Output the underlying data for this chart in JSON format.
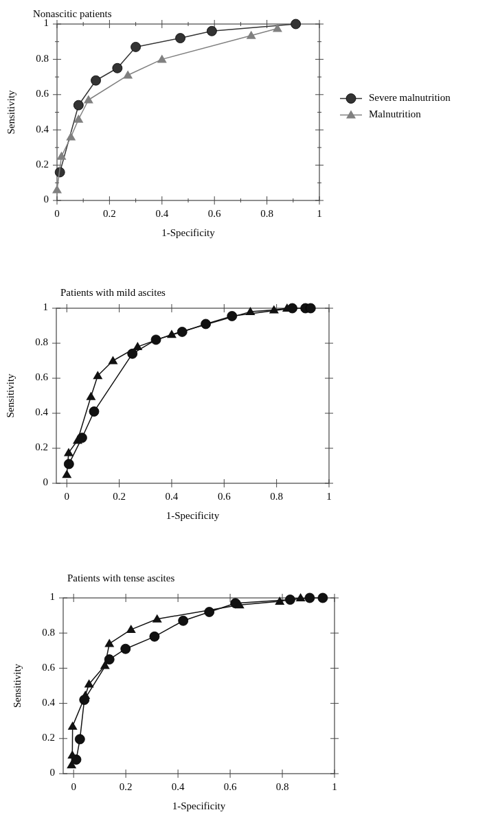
{
  "chart_data": [
    {
      "type": "line",
      "title": "Nonascitic patients",
      "xlabel": "1-Specificity",
      "ylabel": "Sensitivity",
      "xlim": [
        0,
        1
      ],
      "ylim": [
        0,
        1
      ],
      "xticks": [
        0,
        {
          "value": 0.1,
          "label": null
        },
        0.2,
        {
          "value": 0.3,
          "label": null
        },
        0.4,
        {
          "value": 0.5,
          "label": null
        },
        0.6,
        {
          "value": 0.7,
          "label": null
        },
        0.8,
        {
          "value": 0.9,
          "label": null
        },
        1
      ],
      "yticks": [
        0,
        {
          "value": 0.1,
          "label": null
        },
        0.2,
        {
          "value": 0.3,
          "label": null
        },
        0.4,
        {
          "value": 0.5,
          "label": null
        },
        0.6,
        {
          "value": 0.7,
          "label": null
        },
        0.8,
        {
          "value": 0.9,
          "label": null
        },
        1
      ],
      "legend": "right",
      "line_style": "solid",
      "series": [
        {
          "name": "Severe malnutrition",
          "color": "#333333",
          "marker": "circle",
          "x": [
            0.011,
            0.082,
            0.148,
            0.23,
            0.3,
            0.47,
            0.59,
            0.91
          ],
          "values": [
            0.16,
            0.54,
            0.68,
            0.75,
            0.87,
            0.92,
            0.96,
            1.0
          ]
        },
        {
          "name": "Malnutrition",
          "color": "#808080",
          "marker": "triangle",
          "x": [
            0,
            0.017,
            0.053,
            0.082,
            0.12,
            0.27,
            0.4,
            0.74,
            0.84
          ],
          "values": [
            0.06,
            0.25,
            0.36,
            0.46,
            0.57,
            0.71,
            0.8,
            0.935,
            0.975
          ]
        }
      ]
    },
    {
      "type": "line",
      "title": "Patients with mild ascites",
      "xlabel": "1-Specificity",
      "ylabel": "Sensitivity",
      "xlim": [
        -0.04,
        1
      ],
      "ylim": [
        0,
        1
      ],
      "xticks": [
        0,
        0.2,
        0.4,
        0.6,
        0.8,
        1
      ],
      "yticks": [
        0,
        0.2,
        0.4,
        0.6,
        0.8,
        1
      ],
      "line_style": "solid",
      "series": [
        {
          "color": "#111111",
          "marker": "circle",
          "x": [
            0.008,
            0.058,
            0.104,
            0.25,
            0.34,
            0.44,
            0.53,
            0.63,
            0.86,
            0.91,
            0.93
          ],
          "values": [
            0.11,
            0.26,
            0.41,
            0.74,
            0.82,
            0.865,
            0.91,
            0.955,
            1.0,
            1.0,
            1.0
          ]
        },
        {
          "color": "#111111",
          "marker": "triangle",
          "x": [
            0,
            0.007,
            0.041,
            0.092,
            0.118,
            0.176,
            0.27,
            0.4,
            0.7,
            0.79,
            0.84
          ],
          "values": [
            0.05,
            0.175,
            0.245,
            0.495,
            0.615,
            0.7,
            0.78,
            0.85,
            0.98,
            0.99,
            1.0
          ]
        }
      ]
    },
    {
      "type": "line",
      "title": "Patients with tense ascites",
      "xlabel": "1-Specificity",
      "ylabel": "Sensitivity",
      "xlim": [
        -0.04,
        1
      ],
      "ylim": [
        0,
        1
      ],
      "xticks": [
        0,
        0.2,
        0.4,
        0.6,
        0.8,
        1
      ],
      "yticks": [
        0,
        0.2,
        0.4,
        0.6,
        0.8,
        1
      ],
      "line_style": "solid",
      "series": [
        {
          "color": "#111111",
          "marker": "circle",
          "x": [
            0.01,
            0.024,
            0.041,
            0.137,
            0.199,
            0.31,
            0.42,
            0.52,
            0.62,
            0.83,
            0.905,
            0.955
          ],
          "values": [
            0.08,
            0.196,
            0.42,
            0.65,
            0.71,
            0.78,
            0.87,
            0.92,
            0.97,
            0.99,
            1.0,
            1.0
          ]
        },
        {
          "color": "#111111",
          "marker": "triangle",
          "x": [
            -0.008,
            -0.005,
            -0.004,
            0.045,
            0.059,
            0.12,
            0.137,
            0.22,
            0.32,
            0.636,
            0.79,
            0.87
          ],
          "values": [
            0.05,
            0.105,
            0.27,
            0.445,
            0.51,
            0.615,
            0.74,
            0.82,
            0.88,
            0.96,
            0.98,
            1.0
          ]
        }
      ]
    }
  ]
}
